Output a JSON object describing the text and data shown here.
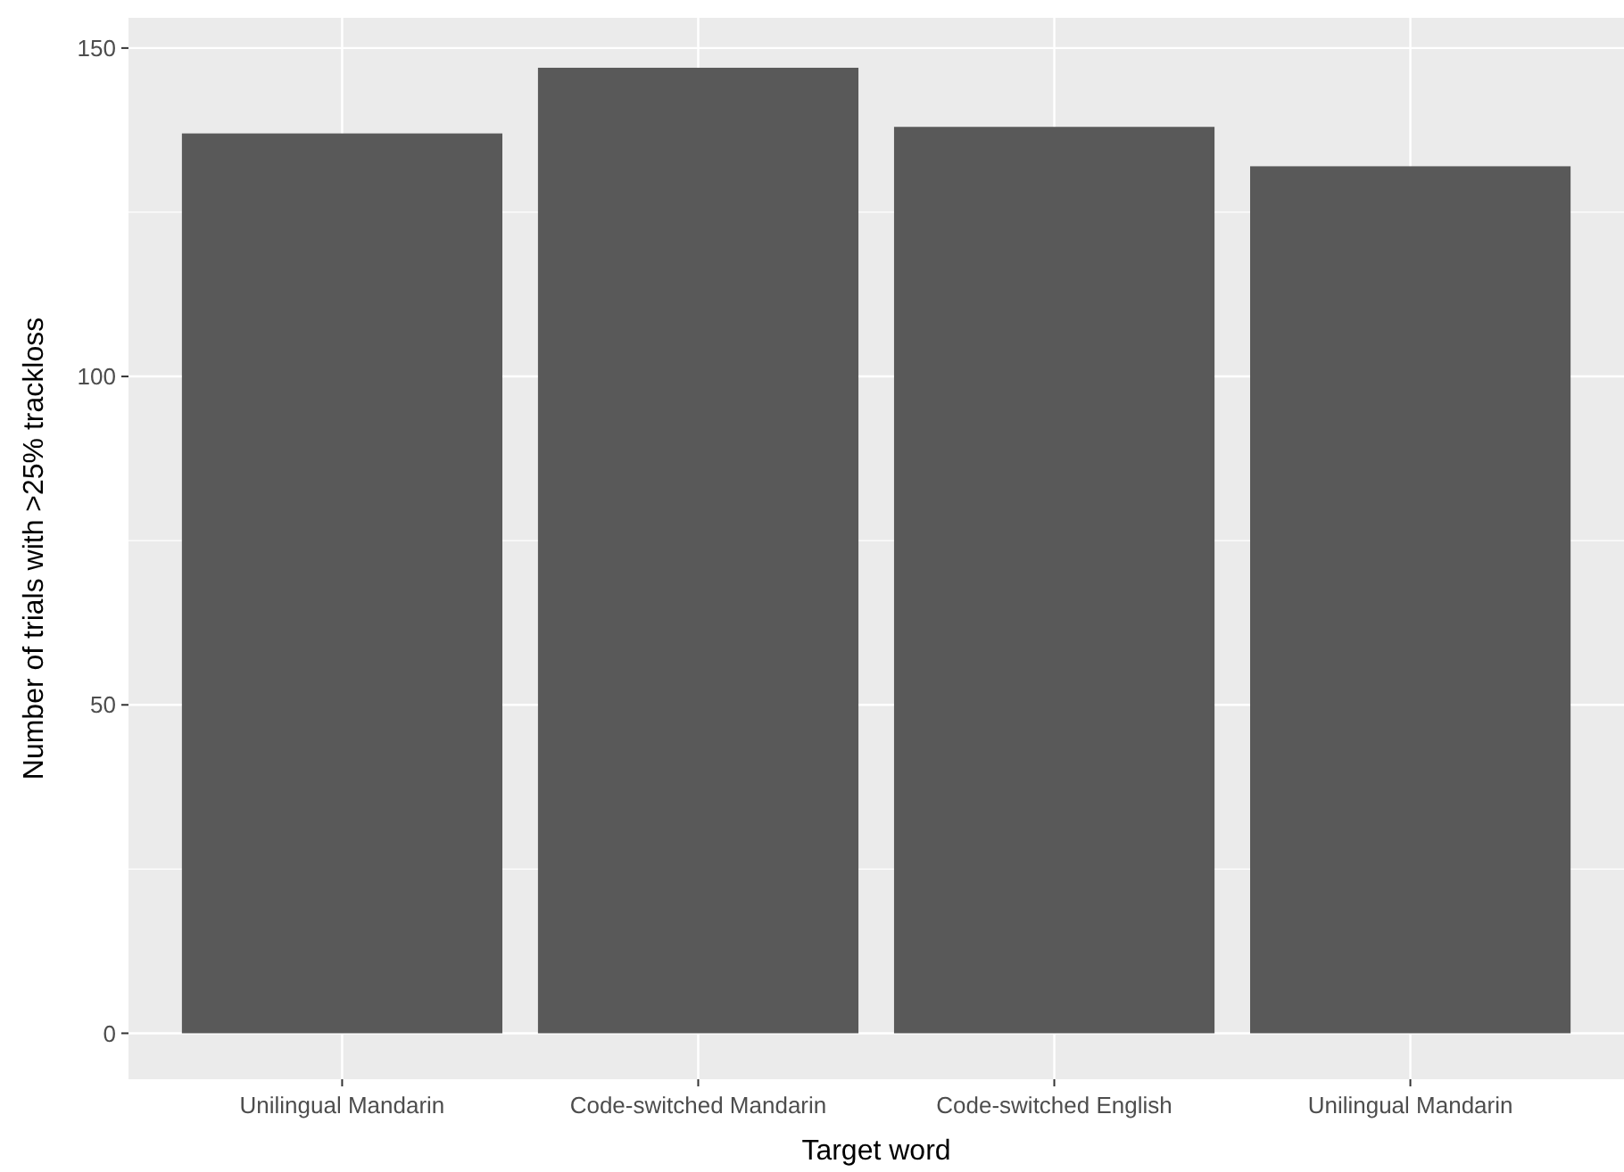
{
  "chart_data": {
    "type": "bar",
    "xlabel": "Target word",
    "ylabel": "Number of trials with >25% trackloss",
    "categories": [
      "Unilingual Mandarin",
      "Code-switched Mandarin",
      "Code-switched English",
      "Unilingual Mandarin"
    ],
    "values": [
      137,
      147,
      138,
      132
    ],
    "color": "#595959",
    "ylim": [
      -7,
      154.6
    ],
    "yticks": [
      0,
      50,
      100,
      150
    ],
    "grid": true
  }
}
